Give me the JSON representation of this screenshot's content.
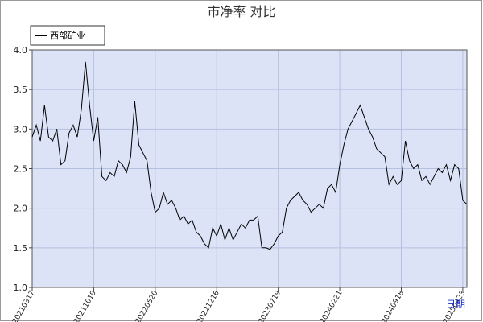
{
  "chart_data": {
    "type": "line",
    "title": "市净率  对比",
    "x_label": "日期",
    "series": [
      {
        "name": "西部矿业",
        "color": "#000000",
        "values": [
          2.9,
          3.05,
          2.85,
          3.3,
          2.9,
          2.85,
          3.0,
          2.55,
          2.6,
          2.95,
          3.05,
          2.9,
          3.25,
          3.85,
          3.3,
          2.85,
          3.15,
          2.4,
          2.35,
          2.45,
          2.4,
          2.6,
          2.55,
          2.45,
          2.65,
          3.35,
          2.8,
          2.7,
          2.6,
          2.2,
          1.95,
          2.0,
          2.2,
          2.05,
          2.1,
          2.0,
          1.85,
          1.9,
          1.8,
          1.85,
          1.7,
          1.65,
          1.55,
          1.5,
          1.75,
          1.65,
          1.8,
          1.6,
          1.75,
          1.6,
          1.7,
          1.8,
          1.75,
          1.85,
          1.85,
          1.9,
          1.5,
          1.5,
          1.48,
          1.55,
          1.65,
          1.7,
          2.0,
          2.1,
          2.15,
          2.2,
          2.1,
          2.05,
          1.95,
          2.0,
          2.05,
          2.0,
          2.25,
          2.3,
          2.2,
          2.55,
          2.8,
          3.0,
          3.1,
          3.2,
          3.3,
          3.15,
          3.0,
          2.9,
          2.75,
          2.7,
          2.65,
          2.3,
          2.4,
          2.3,
          2.35,
          2.85,
          2.6,
          2.5,
          2.55,
          2.35,
          2.4,
          2.3,
          2.4,
          2.5,
          2.45,
          2.55,
          2.35,
          2.55,
          2.5,
          2.1,
          2.05
        ]
      }
    ],
    "xlim": [
      0,
      106
    ],
    "xticks": [
      {
        "value": 0,
        "label": "20210317"
      },
      {
        "value": 15,
        "label": "20211019"
      },
      {
        "value": 30,
        "label": "20220520"
      },
      {
        "value": 45,
        "label": "20221216"
      },
      {
        "value": 60,
        "label": "20230719"
      },
      {
        "value": 75,
        "label": "20240221"
      },
      {
        "value": 90,
        "label": "20240918"
      },
      {
        "value": 105,
        "label": "20250423"
      }
    ],
    "ylim": [
      1.0,
      4.0
    ],
    "yticks": [
      {
        "value": 1.0,
        "label": "1.0"
      },
      {
        "value": 1.5,
        "label": "1.5"
      },
      {
        "value": 2.0,
        "label": "2.0"
      },
      {
        "value": 2.5,
        "label": "2.5"
      },
      {
        "value": 3.0,
        "label": "3.0"
      },
      {
        "value": 3.5,
        "label": "3.5"
      },
      {
        "value": 4.0,
        "label": "4.0"
      }
    ],
    "grid": true,
    "legend": "top-left"
  }
}
